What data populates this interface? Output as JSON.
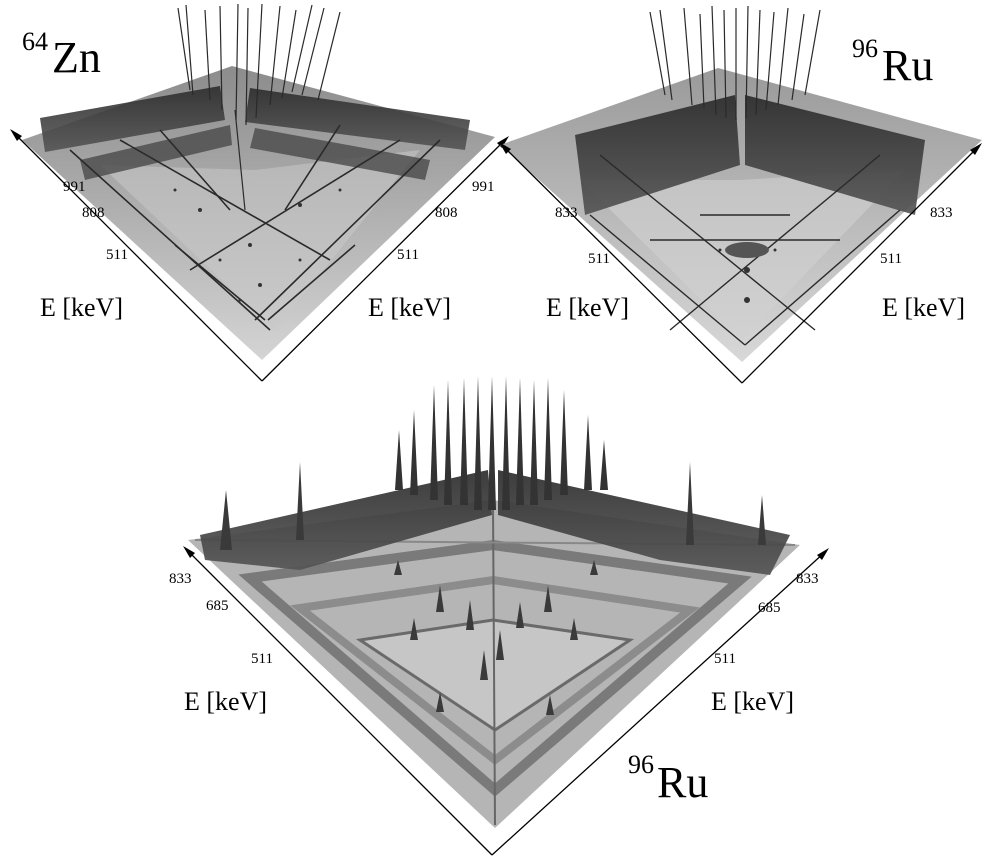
{
  "colors": {
    "floor": "#bdbdbd",
    "floor_far": "#8a8a8a",
    "wall": "#3e3e3e",
    "peak": "#2b2b2b",
    "line": "#000000"
  },
  "panels": {
    "top_left": {
      "isotope_mass": "64",
      "isotope_symbol": "Zn",
      "ticks_left": [
        "991",
        "808",
        "511"
      ],
      "ticks_right": [
        "991",
        "808",
        "511"
      ],
      "axis_label_left": "E [keV]",
      "axis_label_right": "E [keV]"
    },
    "top_right": {
      "isotope_mass": "96",
      "isotope_symbol": "Ru",
      "ticks_left": [
        "833",
        "511"
      ],
      "ticks_right": [
        "833",
        "511"
      ],
      "axis_label_left": "E [keV]",
      "axis_label_right": "E [keV]"
    },
    "bottom": {
      "isotope_mass": "96",
      "isotope_symbol": "Ru",
      "ticks_left": [
        "833",
        "685",
        "511"
      ],
      "ticks_right": [
        "833",
        "685",
        "511"
      ],
      "axis_label_left": "E [keV]",
      "axis_label_right": "E [keV]"
    }
  }
}
